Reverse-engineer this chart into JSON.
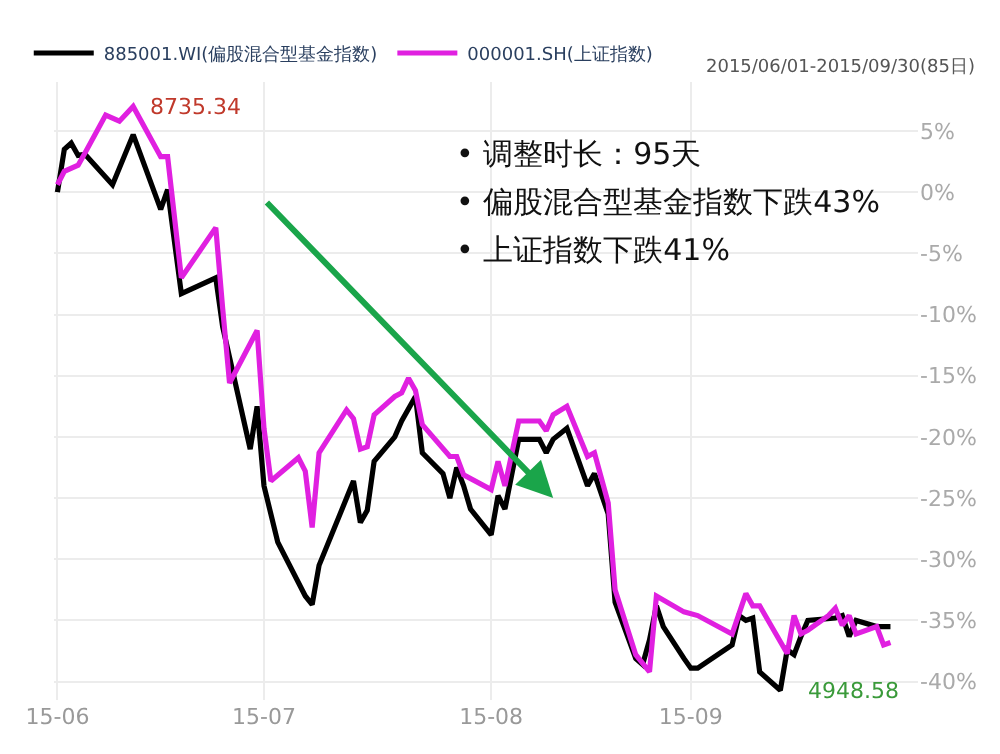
{
  "chart_data": {
    "type": "line",
    "series": [
      {
        "name": "885001.WI(偏股混合型基金指数)",
        "color": "#000000",
        "x": [
          "2015-06-01",
          "2015-06-02",
          "2015-06-03",
          "2015-06-04",
          "2015-06-05",
          "2015-06-09",
          "2015-06-12",
          "2015-06-16",
          "2015-06-17",
          "2015-06-19",
          "2015-06-24",
          "2015-06-25",
          "2015-06-29",
          "2015-06-30",
          "2015-07-01",
          "2015-07-03",
          "2015-07-07",
          "2015-07-08",
          "2015-07-09",
          "2015-07-13",
          "2015-07-14",
          "2015-07-15",
          "2015-07-16",
          "2015-07-17",
          "2015-07-20",
          "2015-07-21",
          "2015-07-23",
          "2015-07-24",
          "2015-07-27",
          "2015-07-28",
          "2015-07-29",
          "2015-07-30",
          "2015-07-31",
          "2015-08-03",
          "2015-08-04",
          "2015-08-05",
          "2015-08-07",
          "2015-08-10",
          "2015-08-11",
          "2015-08-12",
          "2015-08-14",
          "2015-08-17",
          "2015-08-18",
          "2015-08-20",
          "2015-08-21",
          "2015-08-24",
          "2015-08-25",
          "2015-08-26",
          "2015-08-27",
          "2015-08-28",
          "2015-08-31",
          "2015-09-01",
          "2015-09-02",
          "2015-09-07",
          "2015-09-08",
          "2015-09-09",
          "2015-09-10",
          "2015-09-11",
          "2015-09-14",
          "2015-09-15",
          "2015-09-16",
          "2015-09-17",
          "2015-09-18",
          "2015-09-22",
          "2015-09-23",
          "2015-09-24",
          "2015-09-25",
          "2015-09-28",
          "2015-09-30"
        ],
        "values": [
          0,
          3.5,
          4,
          3,
          3.1,
          0.6,
          4.7,
          -1.4,
          0.2,
          -8.3,
          -7,
          -11,
          -21,
          -17.5,
          -24,
          -28.6,
          -33,
          -33.7,
          -30.5,
          -25,
          -23.6,
          -27,
          -26,
          -22,
          -20,
          -18.7,
          -16.7,
          -21.3,
          -23,
          -25,
          -22.5,
          -24,
          -25.9,
          -28,
          -24.8,
          -25.9,
          -20.2,
          -20.2,
          -21.3,
          -20.2,
          -19.3,
          -24,
          -23,
          -26.3,
          -33.5,
          -38.1,
          -38.6,
          -36.6,
          -33.8,
          -35.5,
          -38.1,
          -38.9,
          -38.9,
          -37,
          -34.6,
          -35,
          -34.8,
          -39.2,
          -40.7,
          -37.4,
          -37.8,
          -36.3,
          -35,
          -34.8,
          -34.6,
          -36.3,
          -35,
          -35.5,
          -35.5
        ]
      },
      {
        "name": "000001.SH(上证指数)",
        "color": "#e020e0",
        "x": [
          "2015-06-01",
          "2015-06-02",
          "2015-06-04",
          "2015-06-05",
          "2015-06-08",
          "2015-06-10",
          "2015-06-12",
          "2015-06-16",
          "2015-06-17",
          "2015-06-19",
          "2015-06-24",
          "2015-06-25",
          "2015-06-26",
          "2015-06-30",
          "2015-07-01",
          "2015-07-02",
          "2015-07-06",
          "2015-07-07",
          "2015-07-08",
          "2015-07-09",
          "2015-07-13",
          "2015-07-14",
          "2015-07-15",
          "2015-07-16",
          "2015-07-17",
          "2015-07-20",
          "2015-07-21",
          "2015-07-22",
          "2015-07-23",
          "2015-07-24",
          "2015-07-28",
          "2015-07-29",
          "2015-07-30",
          "2015-08-03",
          "2015-08-04",
          "2015-08-05",
          "2015-08-07",
          "2015-08-10",
          "2015-08-11",
          "2015-08-12",
          "2015-08-14",
          "2015-08-17",
          "2015-08-18",
          "2015-08-20",
          "2015-08-21",
          "2015-08-24",
          "2015-08-26",
          "2015-08-27",
          "2015-08-31",
          "2015-09-02",
          "2015-09-07",
          "2015-09-09",
          "2015-09-10",
          "2015-09-11",
          "2015-09-15",
          "2015-09-16",
          "2015-09-17",
          "2015-09-18",
          "2015-09-21",
          "2015-09-22",
          "2015-09-23",
          "2015-09-24",
          "2015-09-25",
          "2015-09-28",
          "2015-09-29",
          "2015-09-30"
        ],
        "values": [
          0.6,
          1.7,
          2.2,
          3.2,
          6.3,
          5.8,
          7,
          2.9,
          2.9,
          -7,
          -2.9,
          -9.5,
          -15.6,
          -11.3,
          -19.3,
          -23.6,
          -21.7,
          -22.8,
          -27.4,
          -21.3,
          -17.8,
          -18.5,
          -21,
          -20.8,
          -18.2,
          -16.7,
          -16.4,
          -15.2,
          -16.2,
          -19,
          -21.6,
          -21.6,
          -23.1,
          -24.3,
          -22,
          -24,
          -18.7,
          -18.7,
          -19.5,
          -18.2,
          -17.5,
          -21.6,
          -21.3,
          -25.4,
          -32.5,
          -37.8,
          -39.2,
          -33,
          -34.3,
          -34.6,
          -36.1,
          -32.8,
          -33.8,
          -33.8,
          -37.7,
          -34.6,
          -36.1,
          -35.8,
          -34.6,
          -34,
          -35.4,
          -34.6,
          -36.1,
          -35.5,
          -37,
          -36.8
        ]
      }
    ],
    "xlim": [
      "2015-05-31T12:00",
      "2015-10-04"
    ],
    "xticks": [
      {
        "value": "2015-06-01",
        "label": "15-06"
      },
      {
        "value": "2015-07-01",
        "label": "15-07"
      },
      {
        "value": "2015-08-03",
        "label": "15-08"
      },
      {
        "value": "2015-09-01",
        "label": "15-09"
      }
    ],
    "ylim": [
      -41.5,
      9
    ],
    "yticks": [
      {
        "value": 5,
        "label": "5%"
      },
      {
        "value": 0,
        "label": "0%"
      },
      {
        "value": -5,
        "label": "-5%"
      },
      {
        "value": -10,
        "label": "-10%"
      },
      {
        "value": -15,
        "label": "-15%"
      },
      {
        "value": -20,
        "label": "-20%"
      },
      {
        "value": -25,
        "label": "-25%"
      },
      {
        "value": -30,
        "label": "-30%"
      },
      {
        "value": -35,
        "label": "-35%"
      },
      {
        "value": -40,
        "label": "-40%"
      }
    ],
    "grid": true,
    "legend": "top left",
    "marker": "none",
    "line_style": "solid",
    "annotations": [
      "2015/06/01-2015/09/30(85日)",
      "• 调整时长：95天",
      "• 偏股混合型基金指数下跌43%",
      "• 上证指数下跌41%",
      {
        "text": "8735.34",
        "x": "2015-06-12",
        "y": 7
      },
      {
        "text": "4948.58",
        "x": "2015-09-14",
        "y": -40.7
      }
    ]
  }
}
